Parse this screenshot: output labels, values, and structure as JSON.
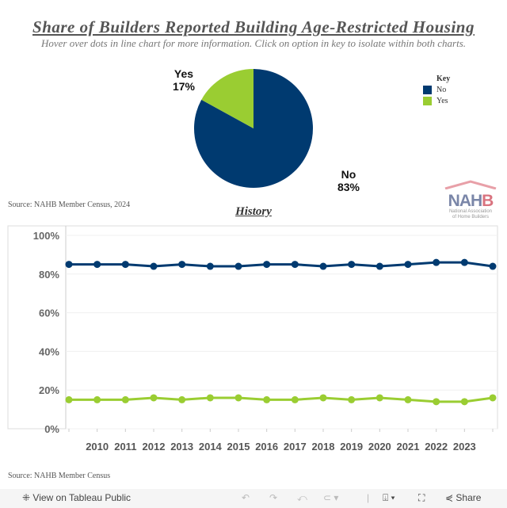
{
  "header": {
    "title": "Share of Builders Reported Building Age-Restricted Housing",
    "subtitle": "Hover over dots in line chart for more information. Click on option in key to isolate within both charts."
  },
  "colors": {
    "no": "#003a70",
    "yes": "#9acd32"
  },
  "key": {
    "title": "Key",
    "items": [
      {
        "label": "No",
        "color": "#003a70"
      },
      {
        "label": "Yes",
        "color": "#9acd32"
      }
    ]
  },
  "source_top": "Source: NAHB Member Census, 2024",
  "source_bottom": "Source: NAHB Member Census",
  "logo": {
    "text": "NAHB",
    "subtext": "National Association of Home Builders"
  },
  "history_title": "History",
  "chart_data": [
    {
      "type": "pie",
      "slices": [
        {
          "label": "No",
          "value": 83,
          "display": "83%"
        },
        {
          "label": "Yes",
          "value": 17,
          "display": "17%"
        }
      ]
    },
    {
      "type": "line",
      "ylim": [
        0,
        100
      ],
      "yticks": [
        "0%",
        "20%",
        "40%",
        "60%",
        "80%",
        "100%"
      ],
      "ytick_values": [
        0,
        20,
        40,
        60,
        80,
        100
      ],
      "xtick_labels": [
        "",
        "2010",
        "2011",
        "2012",
        "2013",
        "2014",
        "2015",
        "2016",
        "2017",
        "2018",
        "2019",
        "2020",
        "2021",
        "2022",
        "2023",
        ""
      ],
      "grid": true,
      "series": [
        {
          "name": "No",
          "color": "#003a70",
          "values": [
            85,
            85,
            85,
            84,
            85,
            84,
            84,
            85,
            85,
            84,
            85,
            84,
            85,
            86,
            86,
            84
          ]
        },
        {
          "name": "Yes",
          "color": "#9acd32",
          "values": [
            15,
            15,
            15,
            16,
            15,
            16,
            16,
            15,
            15,
            16,
            15,
            16,
            15,
            14,
            14,
            16
          ]
        }
      ]
    }
  ],
  "toolbar": {
    "view_label": "View on Tableau Public",
    "share_label": "Share"
  }
}
